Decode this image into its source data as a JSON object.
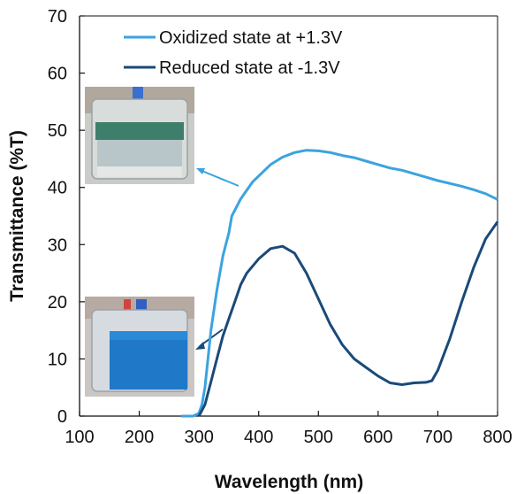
{
  "chart_data": {
    "type": "line",
    "title": "",
    "xlabel": "Wavelength (nm)",
    "ylabel": "Transmittance (%T)",
    "xlim": [
      100,
      800
    ],
    "ylim": [
      0,
      70
    ],
    "xticks": [
      100,
      200,
      300,
      400,
      500,
      600,
      700,
      800
    ],
    "yticks": [
      0,
      10,
      20,
      30,
      40,
      50,
      60,
      70
    ],
    "grid": false,
    "legend_position": "top-left",
    "series": [
      {
        "name": "Oxidized state at +1.3V",
        "color": "#3ba3e0",
        "x": [
          270,
          290,
          300,
          305,
          310,
          315,
          320,
          330,
          340,
          345,
          350,
          355,
          360,
          370,
          380,
          390,
          400,
          420,
          440,
          460,
          480,
          500,
          520,
          540,
          560,
          580,
          600,
          620,
          640,
          660,
          680,
          700,
          720,
          740,
          760,
          780,
          800
        ],
        "y": [
          0,
          0,
          0.5,
          2,
          5,
          10,
          15,
          22,
          28,
          30,
          32,
          35,
          36,
          38,
          39.5,
          41,
          42,
          44,
          45.3,
          46.1,
          46.5,
          46.4,
          46.1,
          45.6,
          45.2,
          44.6,
          44.0,
          43.4,
          43.0,
          42.4,
          41.8,
          41.2,
          40.7,
          40.2,
          39.6,
          38.9,
          37.9
        ]
      },
      {
        "name": "Reduced state at -1.3V",
        "color": "#1a4a78",
        "x": [
          300,
          310,
          320,
          330,
          340,
          350,
          360,
          370,
          380,
          400,
          420,
          440,
          460,
          480,
          500,
          520,
          540,
          560,
          580,
          600,
          620,
          640,
          660,
          680,
          690,
          700,
          720,
          740,
          760,
          780,
          800
        ],
        "y": [
          0,
          2,
          6,
          10,
          14,
          17,
          20,
          23,
          25,
          27.5,
          29.3,
          29.7,
          28.5,
          25,
          20.5,
          16,
          12.5,
          10,
          8.5,
          7,
          5.8,
          5.5,
          5.8,
          5.9,
          6.2,
          8,
          13.5,
          20,
          26,
          31,
          34
        ]
      }
    ]
  },
  "images": {
    "top_photo": "Photo of vial: oxidized state (transparent)",
    "bottom_photo": "Photo of vial: reduced state (blue)"
  }
}
